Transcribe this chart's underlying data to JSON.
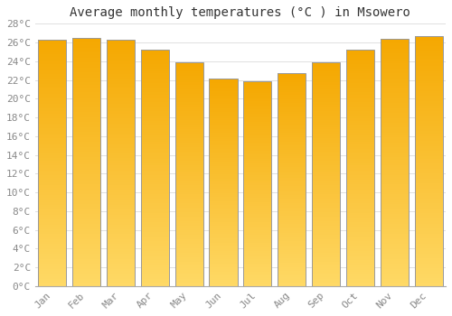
{
  "title": "Average monthly temperatures (°C ) in Msowero",
  "months": [
    "Jan",
    "Feb",
    "Mar",
    "Apr",
    "May",
    "Jun",
    "Jul",
    "Aug",
    "Sep",
    "Oct",
    "Nov",
    "Dec"
  ],
  "temperatures": [
    26.3,
    26.5,
    26.3,
    25.2,
    23.9,
    22.1,
    21.9,
    22.7,
    23.9,
    25.2,
    26.4,
    26.7
  ],
  "bar_color_top": "#F5A800",
  "bar_color_bottom": "#FFD966",
  "bar_edge_color": "#999999",
  "ylim": [
    0,
    28
  ],
  "ytick_step": 2,
  "background_color": "#ffffff",
  "grid_color": "#e0e0e0",
  "title_fontsize": 10,
  "tick_fontsize": 8,
  "tick_color": "#888888",
  "bar_width": 0.82
}
